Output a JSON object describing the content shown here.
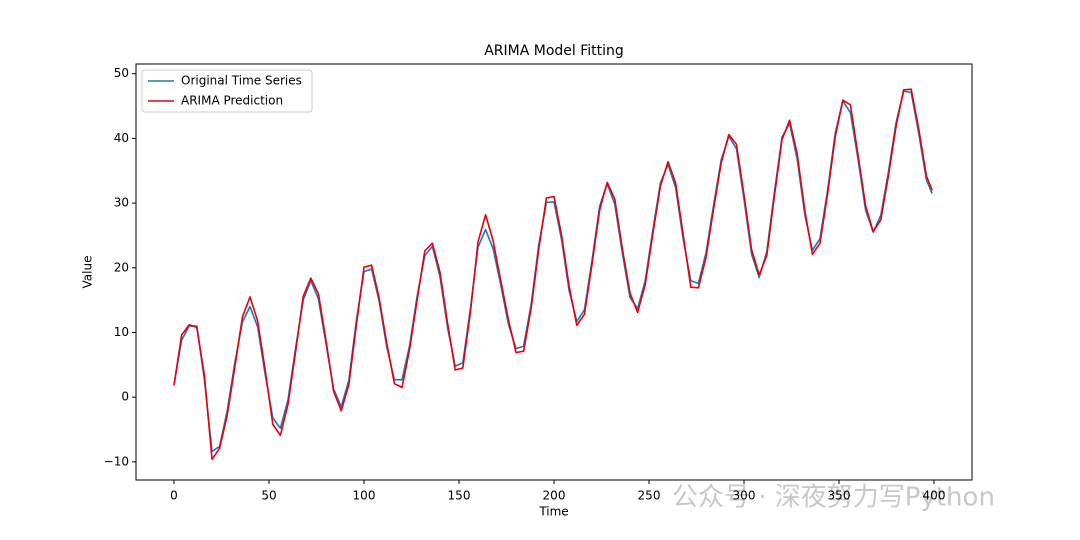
{
  "chart_data": {
    "type": "line",
    "title": "ARIMA Model Fitting",
    "xlabel": "Time",
    "ylabel": "Value",
    "x": [
      0,
      4,
      8,
      12,
      16,
      20,
      24,
      28,
      32,
      36,
      40,
      44,
      48,
      52,
      56,
      60,
      64,
      68,
      72,
      76,
      80,
      84,
      88,
      92,
      96,
      100,
      104,
      108,
      112,
      116,
      120,
      124,
      128,
      132,
      136,
      140,
      144,
      148,
      152,
      156,
      160,
      164,
      168,
      172,
      176,
      180,
      184,
      188,
      192,
      196,
      200,
      204,
      208,
      212,
      216,
      220,
      224,
      228,
      232,
      236,
      240,
      244,
      248,
      252,
      256,
      260,
      264,
      268,
      272,
      276,
      280,
      284,
      288,
      292,
      296,
      300,
      304,
      308,
      312,
      316,
      320,
      324,
      328,
      332,
      336,
      340,
      344,
      348,
      352,
      356,
      360,
      364,
      368,
      372,
      376,
      380,
      384,
      388,
      392,
      396,
      399
    ],
    "series": [
      {
        "name": "Original Time Series",
        "color": "#1f77b4",
        "values": [
          2,
          8.8,
          11,
          11,
          2.7,
          -8.4,
          -7.6,
          -2.1,
          5.3,
          11.6,
          14,
          10.9,
          3.5,
          -3.2,
          -4.8,
          -0.4,
          7.6,
          15,
          18,
          15.2,
          8.25,
          1.3,
          -1.5,
          2.6,
          11.9,
          19.4,
          19.8,
          14.8,
          7.7,
          2.7,
          2.7,
          8,
          15.7,
          21.9,
          23.3,
          18.6,
          10.7,
          4.8,
          5.3,
          13.7,
          23.2,
          25.9,
          22.9,
          17.3,
          11.3,
          7.5,
          7.9,
          14.4,
          23.6,
          30.1,
          30.2,
          24.3,
          16.4,
          11.7,
          13.5,
          21.1,
          29.5,
          33,
          29.8,
          22.2,
          15.4,
          13.7,
          18,
          25.8,
          33.1,
          36,
          32.4,
          24.4,
          18,
          17.6,
          22.3,
          29.7,
          36.7,
          40.3,
          38.4,
          30.6,
          22.1,
          18.5,
          22.5,
          31.7,
          40.2,
          42.3,
          36.8,
          28.2,
          22.7,
          24.5,
          32,
          40.8,
          45.8,
          44,
          36.8,
          28.9,
          25.5,
          28.1,
          34.8,
          42.4,
          47.3,
          47.1,
          40.7,
          33.6,
          31.5
        ]
      },
      {
        "name": "ARIMA Prediction",
        "color": "#e8000b",
        "values": [
          1.8,
          9.6,
          11.2,
          10.8,
          3.4,
          -9.6,
          -7.9,
          -2.8,
          4.6,
          12.4,
          15.5,
          11.8,
          4.2,
          -4.2,
          -5.9,
          -1.1,
          7,
          15.6,
          18.4,
          16,
          8.8,
          0.9,
          -2.1,
          1.9,
          11.2,
          20.1,
          20.4,
          15.3,
          8.3,
          2.1,
          1.5,
          7.4,
          15.1,
          22.6,
          23.8,
          19.3,
          11.4,
          4.2,
          4.5,
          13.1,
          24,
          28.2,
          24.1,
          18,
          12,
          6.9,
          7.1,
          13.8,
          22.9,
          30.8,
          31,
          25,
          17.1,
          11.1,
          12.8,
          20.5,
          28.9,
          33.2,
          30.6,
          22.9,
          16.1,
          13.1,
          17.4,
          25.2,
          32.6,
          36.4,
          33.1,
          25.1,
          17,
          16.9,
          21.6,
          29.1,
          36.2,
          40.6,
          39.1,
          31.3,
          22.8,
          18.9,
          21.9,
          31.1,
          39.8,
          42.8,
          37.6,
          28.9,
          22.1,
          23.8,
          31.4,
          40.2,
          45.9,
          45.2,
          37.5,
          29.6,
          25.6,
          27.4,
          34.2,
          41.8,
          47.5,
          47.6,
          41.4,
          34.2,
          32
        ]
      }
    ],
    "xlim": [
      -20,
      420
    ],
    "ylim": [
      -12.8,
      51.5
    ],
    "xticks": [
      0,
      50,
      100,
      150,
      200,
      250,
      300,
      350,
      400
    ],
    "yticks": [
      {
        "value": -10,
        "label": "−10"
      },
      0,
      10,
      20,
      30,
      40,
      50
    ],
    "legend": "upper left",
    "watermark": "公众号 · 深夜努力写Python"
  }
}
